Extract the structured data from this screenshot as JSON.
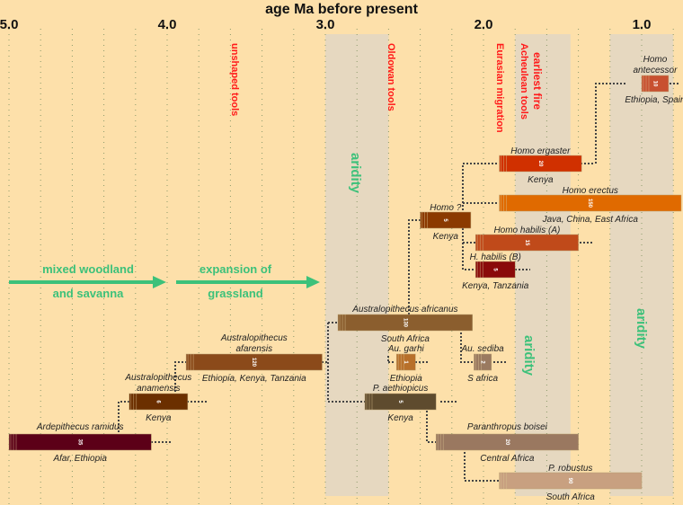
{
  "title": "age Ma before present",
  "axis": {
    "ticks": [
      "5.0",
      "4.0",
      "3.0",
      "2.0",
      "1.0"
    ],
    "tick_values": [
      5.0,
      4.0,
      3.0,
      2.0,
      1.0
    ],
    "grid_step_ma": 0.2
  },
  "aridity_bands": [
    {
      "from": 3.0,
      "to": 2.6,
      "label": "aridity"
    },
    {
      "from": 1.8,
      "to": 1.45,
      "label": "aridity"
    },
    {
      "from": 1.2,
      "to": 0.8,
      "label": "aridity"
    }
  ],
  "events": [
    {
      "label": "unshaped tools"
    },
    {
      "label": "Oldowan tools"
    },
    {
      "label": "Eurasian migration"
    },
    {
      "label": "earliest fire"
    },
    {
      "label": "Acheulean tools"
    }
  ],
  "environments": [
    {
      "line1": "mixed woodland",
      "line2": "and savanna"
    },
    {
      "line1": "expansion of",
      "line2": "grassland"
    }
  ],
  "species": [
    {
      "name": "Ardepithecus ramidus",
      "region": "Afar, Ethiopia",
      "from": 5.0,
      "to": 4.1,
      "count": "35",
      "color": "#5c0018"
    },
    {
      "name": "Australopithecus anamensis",
      "region": "Kenya",
      "from": 4.24,
      "to": 3.87,
      "count": "6",
      "color": "#6b2f00"
    },
    {
      "name": "Australopithecus afarensis",
      "region": "Ethiopia, Kenya, Tanzania",
      "from": 3.88,
      "to": 3.02,
      "count": "120",
      "color": "#8b4a1a"
    },
    {
      "name": "Australopithecus africanus",
      "region": "South Africa",
      "from": 2.92,
      "to": 2.07,
      "count": "130",
      "color": "#8b5e2e"
    },
    {
      "name": "Au. garhi",
      "region": "Ethiopia",
      "from": 2.55,
      "to": 2.43,
      "count": "1",
      "color": "#b8702a"
    },
    {
      "name": "Au. sediba",
      "region": "S africa",
      "from": 2.06,
      "to": 1.95,
      "count": "2",
      "color": "#9a7a60"
    },
    {
      "name": "P. aethiopicus",
      "region": "Kenya",
      "from": 2.75,
      "to": 2.3,
      "count": "5",
      "color": "#5e4b2e"
    },
    {
      "name": "Paranthropus boisei",
      "region": "Central Africa",
      "from": 2.3,
      "to": 1.4,
      "count": "20",
      "color": "#9a7860"
    },
    {
      "name": "P. robustus",
      "region": "South Africa",
      "from": 1.9,
      "to": 1.0,
      "count": "90",
      "color": "#c8a080"
    },
    {
      "name": "Homo ?",
      "region": "Kenya",
      "from": 2.4,
      "to": 2.08,
      "count": "5",
      "color": "#8b3a00"
    },
    {
      "name": "Homo ergaster",
      "region": "Kenya",
      "from": 1.9,
      "to": 1.38,
      "count": "20",
      "color": "#d03000"
    },
    {
      "name": "Homo erectus",
      "region": "Java, China, East Africa",
      "from": 1.9,
      "to": 0.75,
      "count": "150",
      "color": "#e06a00"
    },
    {
      "name": "Homo habilis (A)",
      "region": "",
      "from": 2.05,
      "to": 1.4,
      "count": "15",
      "color": "#c04a1a"
    },
    {
      "name": "H. habilis (B)",
      "region": "Kenya, Tanzania",
      "from": 2.05,
      "to": 1.8,
      "count": "5",
      "color": "#8a0a0a"
    },
    {
      "name": "Homo antecessor",
      "region": "Ethiopia, Spain",
      "from": 1.0,
      "to": 0.83,
      "count": "10",
      "color": "#c85030"
    }
  ]
}
